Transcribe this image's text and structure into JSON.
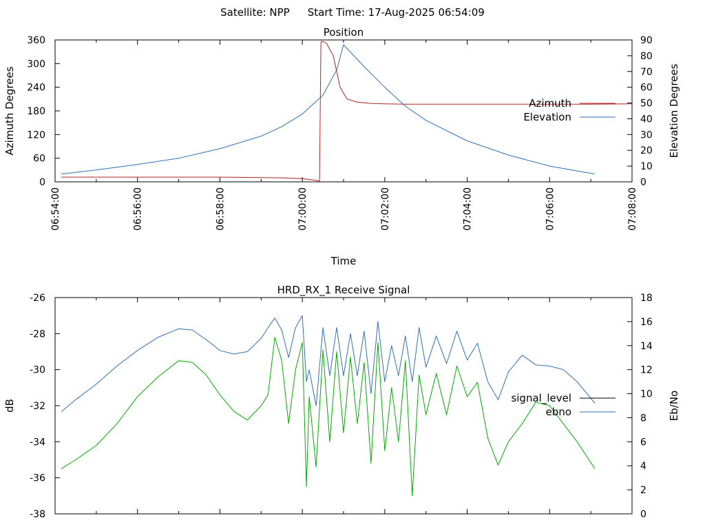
{
  "figure": {
    "satellite_label": "Satellite: NPP",
    "start_time_label": "Start Time: 17-Aug-2025 06:54:09"
  },
  "chart_data": [
    {
      "type": "line",
      "title": "Position",
      "xlabel": "Time",
      "ylabel": "Azimuth Degrees",
      "y2label": "Elevation Degrees",
      "xlim": [
        "06:54:00",
        "07:08:00"
      ],
      "x_ticks": [
        "06:54:00",
        "06:56:00",
        "06:58:00",
        "07:00:00",
        "07:02:00",
        "07:04:00",
        "07:06:00",
        "07:08:00"
      ],
      "ylim": [
        0,
        360
      ],
      "y_ticks": [
        "0",
        "60",
        "120",
        "180",
        "240",
        "300",
        "360"
      ],
      "y2lim": [
        0,
        90
      ],
      "y2_ticks": [
        "0",
        "10",
        "20",
        "30",
        "40",
        "50",
        "60",
        "70",
        "80",
        "90"
      ],
      "legend_position": "right",
      "series": [
        {
          "name": "Azimuth",
          "axis": "left",
          "color": "#b22222",
          "x": [
            "06:54:09",
            "06:55:00",
            "06:56:00",
            "06:57:00",
            "06:58:00",
            "06:59:00",
            "06:59:30",
            "07:00:00",
            "07:00:15",
            "07:00:25",
            "07:00:27",
            "07:00:28",
            "07:00:35",
            "07:00:45",
            "07:00:55",
            "07:01:05",
            "07:01:20",
            "07:01:40",
            "07:02:00",
            "07:02:30",
            "07:03:00",
            "07:04:00",
            "07:05:00",
            "07:06:00",
            "07:07:00",
            "07:08:00"
          ],
          "values": [
            12,
            12,
            12,
            12,
            12,
            11,
            10,
            8,
            5,
            2,
            350,
            357,
            352,
            320,
            240,
            210,
            202,
            199,
            198,
            197,
            197,
            197,
            197,
            197,
            197,
            198
          ]
        },
        {
          "name": "Elevation",
          "axis": "right",
          "color": "#2e6fb5",
          "x": [
            "06:54:09",
            "06:55:00",
            "06:56:00",
            "06:57:00",
            "06:58:00",
            "06:59:00",
            "06:59:30",
            "07:00:00",
            "07:00:30",
            "07:00:50",
            "07:01:00",
            "07:01:30",
            "07:02:00",
            "07:02:30",
            "07:03:00",
            "07:04:00",
            "07:05:00",
            "07:06:00",
            "07:07:06"
          ],
          "values": [
            5,
            7.5,
            11,
            15,
            21,
            29,
            35,
            43,
            55,
            71,
            87,
            73,
            60,
            48,
            39,
            26,
            17,
            10,
            5
          ]
        }
      ]
    },
    {
      "type": "line",
      "title": "HRD_RX_1 Receive Signal",
      "xlabel": "",
      "ylabel": "dB",
      "y2label": "Eb/No",
      "xlim": [
        "06:54:00",
        "07:08:00"
      ],
      "ylim": [
        -38,
        -26
      ],
      "y_ticks": [
        "-26",
        "-28",
        "-30",
        "-32",
        "-34",
        "-36",
        "-38"
      ],
      "y2lim": [
        0,
        18
      ],
      "y2_ticks": [
        "0",
        "2",
        "4",
        "6",
        "8",
        "10",
        "12",
        "14",
        "16",
        "18"
      ],
      "legend_position": "right",
      "series": [
        {
          "name": "signal_level",
          "axis": "left",
          "color": "#00aa00",
          "legend_color": "#000000",
          "x": [
            "06:54:09",
            "06:54:30",
            "06:55:00",
            "06:55:30",
            "06:56:00",
            "06:56:30",
            "06:57:00",
            "06:57:20",
            "06:57:40",
            "06:58:00",
            "06:58:20",
            "06:58:40",
            "06:59:00",
            "06:59:10",
            "06:59:20",
            "06:59:30",
            "06:59:40",
            "06:59:50",
            "07:00:00",
            "07:00:06",
            "07:00:10",
            "07:00:20",
            "07:00:30",
            "07:00:40",
            "07:00:50",
            "07:01:00",
            "07:01:10",
            "07:01:20",
            "07:01:30",
            "07:01:40",
            "07:01:50",
            "07:02:00",
            "07:02:10",
            "07:02:20",
            "07:02:30",
            "07:02:40",
            "07:02:50",
            "07:03:00",
            "07:03:15",
            "07:03:30",
            "07:03:45",
            "07:04:00",
            "07:04:15",
            "07:04:30",
            "07:04:45",
            "07:05:00",
            "07:05:20",
            "07:05:40",
            "07:06:00",
            "07:06:20",
            "07:06:40",
            "07:07:06"
          ],
          "values": [
            -35.5,
            -35,
            -34.2,
            -33,
            -31.5,
            -30.4,
            -29.5,
            -29.6,
            -30.3,
            -31.4,
            -32.3,
            -32.8,
            -32,
            -31.4,
            -28.2,
            -29.5,
            -33,
            -30,
            -28.5,
            -36.5,
            -31.5,
            -35.4,
            -28.9,
            -34,
            -29,
            -33.5,
            -29.3,
            -33,
            -29.6,
            -35.2,
            -28.5,
            -34.5,
            -31,
            -34,
            -29.5,
            -37,
            -30.3,
            -32.5,
            -30.2,
            -32.5,
            -29.8,
            -31.5,
            -30.7,
            -33.8,
            -35.3,
            -34,
            -33,
            -31.8,
            -32,
            -33,
            -34,
            -35.5
          ]
        },
        {
          "name": "ebno",
          "axis": "right",
          "color": "#2e6fb5",
          "x": [
            "06:54:09",
            "06:54:30",
            "06:55:00",
            "06:55:30",
            "06:56:00",
            "06:56:30",
            "06:57:00",
            "06:57:20",
            "06:57:40",
            "06:58:00",
            "06:58:20",
            "06:58:40",
            "06:59:00",
            "06:59:10",
            "06:59:20",
            "06:59:30",
            "06:59:40",
            "06:59:50",
            "07:00:00",
            "07:00:06",
            "07:00:10",
            "07:00:20",
            "07:00:30",
            "07:00:40",
            "07:00:50",
            "07:01:00",
            "07:01:10",
            "07:01:20",
            "07:01:30",
            "07:01:40",
            "07:01:50",
            "07:02:00",
            "07:02:10",
            "07:02:20",
            "07:02:30",
            "07:02:40",
            "07:02:50",
            "07:03:00",
            "07:03:15",
            "07:03:30",
            "07:03:45",
            "07:04:00",
            "07:04:15",
            "07:04:30",
            "07:04:45",
            "07:05:00",
            "07:05:20",
            "07:05:40",
            "07:06:00",
            "07:06:20",
            "07:06:40",
            "07:07:06"
          ],
          "values": [
            8.5,
            9.5,
            10.8,
            12.3,
            13.6,
            14.7,
            15.4,
            15.3,
            14.5,
            13.6,
            13.3,
            13.5,
            14.6,
            15.5,
            16.3,
            15.3,
            13,
            15.5,
            16.5,
            11,
            12,
            9,
            15.5,
            11.5,
            15.5,
            11.5,
            15,
            11.5,
            15.2,
            10,
            16,
            11,
            14,
            11.5,
            14.8,
            11,
            15.5,
            12.2,
            14.8,
            12.5,
            15.2,
            12.8,
            14.2,
            11,
            9.5,
            11.8,
            13.2,
            12.4,
            12.3,
            12,
            11,
            9.2
          ]
        }
      ]
    }
  ]
}
